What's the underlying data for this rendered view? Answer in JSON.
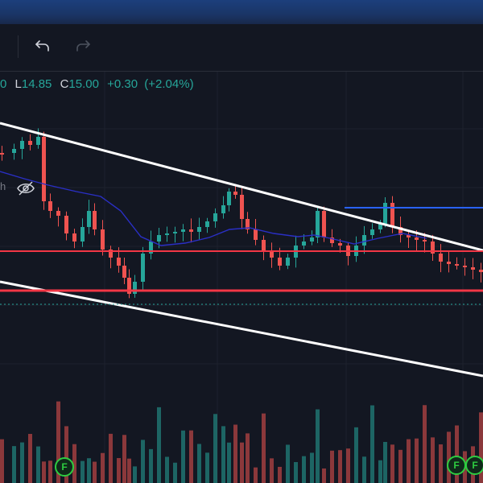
{
  "toolbar": {
    "undo_icon": "undo-icon",
    "redo_icon": "redo-icon"
  },
  "legend": {
    "prefix": "0",
    "low_label": "L",
    "low_value": "14.85",
    "close_label": "C",
    "close_value": "15.00",
    "change": "+0.30",
    "change_pct": "(+2.04%)"
  },
  "indicator": {
    "label": "h"
  },
  "events": {
    "badge_label": "F"
  },
  "colors": {
    "up": "#26a69a",
    "down": "#ef5350",
    "ma": "#2a2fc5",
    "trendline": "#ffffff",
    "hline_red": "#f23645",
    "hline_blue": "#2962ff",
    "background": "#131722"
  }
}
